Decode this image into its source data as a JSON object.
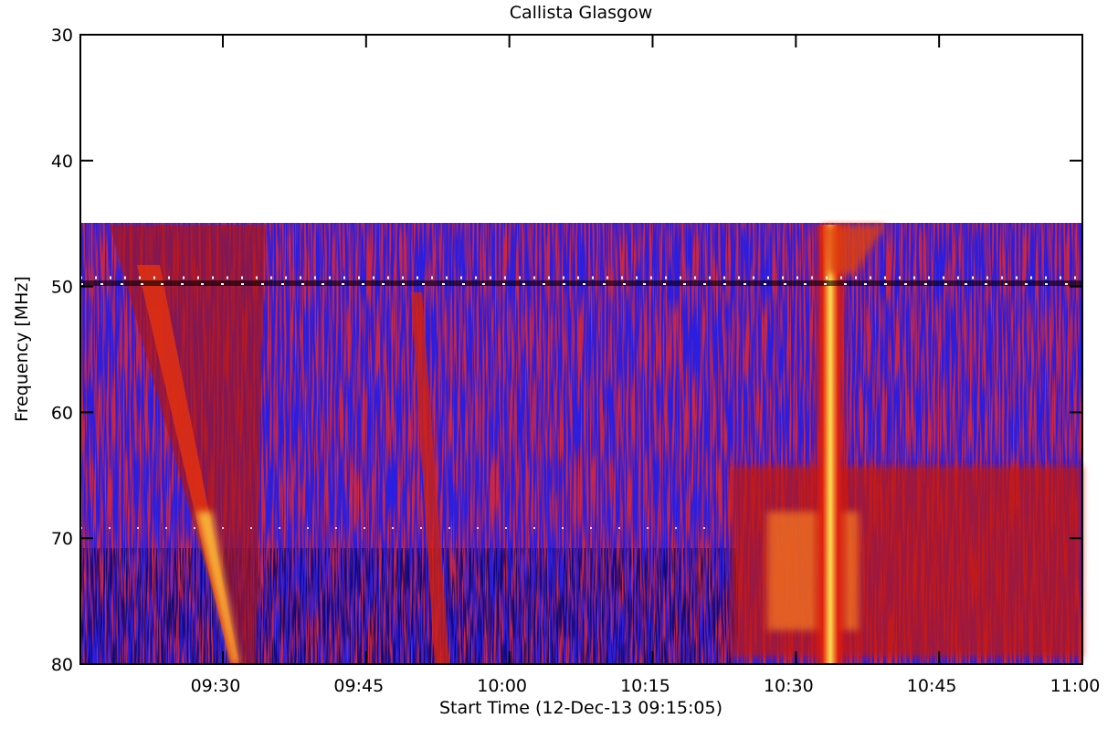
{
  "chart_data": {
    "type": "spectrogram",
    "title": "Callista Glasgow",
    "x_label": "Start Time (12-Dec-13 09:15:05)",
    "y_label": "Frequency [MHz]",
    "xlim": [
      555.0833,
      660
    ],
    "xticks": [
      {
        "value": 570,
        "label": "09:30"
      },
      {
        "value": 585,
        "label": "09:45"
      },
      {
        "value": 600,
        "label": "10:00"
      },
      {
        "value": 615,
        "label": "10:15"
      },
      {
        "value": 630,
        "label": "10:30"
      },
      {
        "value": 645,
        "label": "10:45"
      },
      {
        "value": 660,
        "label": "11:00"
      }
    ],
    "ylim": [
      30,
      80
    ],
    "y_reversed": true,
    "yticks": [
      30,
      40,
      50,
      60,
      70,
      80
    ]
  }
}
